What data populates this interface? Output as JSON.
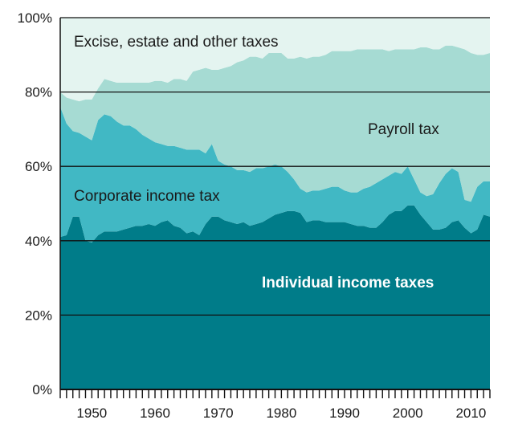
{
  "chart_data": {
    "type": "area",
    "stacked": true,
    "normalized": true,
    "x": [
      1945,
      1946,
      1947,
      1948,
      1949,
      1950,
      1951,
      1952,
      1953,
      1954,
      1955,
      1956,
      1957,
      1958,
      1959,
      1960,
      1961,
      1962,
      1963,
      1964,
      1965,
      1966,
      1967,
      1968,
      1969,
      1970,
      1971,
      1972,
      1973,
      1974,
      1975,
      1976,
      1977,
      1978,
      1979,
      1980,
      1981,
      1982,
      1983,
      1984,
      1985,
      1986,
      1987,
      1988,
      1989,
      1990,
      1991,
      1992,
      1993,
      1994,
      1995,
      1996,
      1997,
      1998,
      1999,
      2000,
      2001,
      2002,
      2003,
      2004,
      2005,
      2006,
      2007,
      2008,
      2009,
      2010,
      2011,
      2012,
      2013
    ],
    "series": [
      {
        "name": "Individual income taxes",
        "values": [
          41.0,
          41.5,
          46.5,
          46.5,
          40.0,
          39.5,
          41.5,
          42.5,
          42.5,
          42.5,
          43.0,
          43.5,
          44.0,
          44.0,
          44.5,
          44.0,
          45.0,
          45.5,
          44.0,
          43.5,
          42.0,
          42.5,
          41.5,
          44.5,
          46.5,
          46.5,
          45.5,
          45.0,
          44.5,
          45.0,
          44.0,
          44.5,
          45.0,
          46.0,
          47.0,
          47.5,
          48.0,
          48.0,
          47.5,
          45.0,
          45.5,
          45.5,
          45.0,
          45.0,
          45.0,
          45.0,
          44.5,
          44.0,
          44.0,
          43.5,
          43.5,
          45.0,
          47.0,
          48.0,
          48.0,
          49.5,
          49.5,
          47.0,
          45.0,
          43.0,
          43.0,
          43.5,
          45.0,
          45.5,
          43.5,
          42.0,
          43.0,
          47.0,
          46.5
        ],
        "color": "#007c89"
      },
      {
        "name": "Corporate income tax",
        "values": [
          35.0,
          30.0,
          23.0,
          22.5,
          28.0,
          27.5,
          31.0,
          31.5,
          31.0,
          29.5,
          28.0,
          27.5,
          26.0,
          24.5,
          23.0,
          22.5,
          21.0,
          20.0,
          21.5,
          21.5,
          22.5,
          22.0,
          23.0,
          19.0,
          19.5,
          15.0,
          15.0,
          15.0,
          14.5,
          14.0,
          14.5,
          15.0,
          14.5,
          14.0,
          13.5,
          12.5,
          10.5,
          8.5,
          6.5,
          8.0,
          8.0,
          8.0,
          9.0,
          9.5,
          9.5,
          8.5,
          8.5,
          9.0,
          10.0,
          11.0,
          12.0,
          11.5,
          10.5,
          10.5,
          10.0,
          10.5,
          7.0,
          6.0,
          7.0,
          9.5,
          12.5,
          14.5,
          14.5,
          13.0,
          7.5,
          8.5,
          11.5,
          9.0,
          9.5
        ],
        "color": "#41b8c4"
      },
      {
        "name": "Payroll tax",
        "values": [
          4.0,
          7.0,
          8.5,
          8.5,
          10.0,
          11.0,
          8.5,
          9.5,
          9.5,
          10.5,
          11.5,
          11.5,
          12.5,
          14.0,
          15.0,
          16.5,
          17.0,
          17.0,
          18.0,
          18.5,
          18.5,
          21.0,
          21.5,
          23.0,
          20.0,
          24.5,
          26.0,
          27.0,
          29.0,
          29.5,
          31.0,
          30.0,
          29.5,
          30.5,
          30.0,
          30.5,
          30.5,
          32.5,
          35.5,
          36.0,
          36.0,
          36.0,
          36.0,
          36.5,
          36.5,
          37.5,
          38.0,
          38.5,
          37.5,
          37.0,
          36.0,
          35.0,
          33.5,
          33.0,
          33.5,
          31.5,
          35.0,
          39.0,
          40.0,
          39.0,
          36.0,
          34.5,
          33.0,
          33.5,
          40.5,
          40.0,
          35.5,
          34.0,
          34.5
        ],
        "color": "#a6dbd3"
      },
      {
        "name": "Excise, estate and other taxes",
        "values": [
          20.0,
          21.5,
          22.0,
          22.5,
          22.0,
          22.0,
          19.0,
          16.5,
          17.0,
          17.5,
          17.5,
          17.5,
          17.5,
          17.5,
          17.5,
          17.0,
          17.0,
          17.5,
          16.5,
          16.5,
          17.0,
          14.5,
          14.0,
          13.5,
          14.0,
          14.0,
          13.5,
          13.0,
          12.0,
          11.5,
          10.5,
          10.5,
          11.0,
          9.5,
          9.5,
          9.5,
          11.0,
          11.0,
          10.5,
          11.0,
          10.5,
          10.5,
          10.0,
          9.0,
          9.0,
          9.0,
          9.0,
          8.5,
          8.5,
          8.5,
          8.5,
          8.5,
          9.0,
          8.5,
          8.5,
          8.5,
          8.5,
          8.0,
          8.0,
          8.5,
          8.5,
          7.5,
          7.5,
          8.0,
          8.5,
          9.5,
          10.0,
          10.0,
          9.5
        ],
        "color": "#e4f4f0"
      }
    ],
    "ylim": [
      0,
      100
    ],
    "xlim": [
      1945,
      2013
    ],
    "y_ticks": [
      "0%",
      "20%",
      "40%",
      "60%",
      "80%",
      "100%"
    ],
    "y_tick_values": [
      0,
      20,
      40,
      60,
      80,
      100
    ],
    "x_ticks": [
      "1950",
      "1960",
      "1970",
      "1980",
      "1990",
      "2000",
      "2010"
    ],
    "x_tick_values": [
      1950,
      1960,
      1970,
      1980,
      1990,
      2000,
      2010
    ],
    "grid": true,
    "legend": "none",
    "annotations": [
      {
        "text": "Excise, estate and other taxes",
        "series": 3
      },
      {
        "text": "Payroll tax",
        "series": 2
      },
      {
        "text": "Corporate income tax",
        "series": 1
      },
      {
        "text": "Individual income taxes",
        "series": 0
      }
    ],
    "title": "",
    "xlabel": "",
    "ylabel": ""
  }
}
